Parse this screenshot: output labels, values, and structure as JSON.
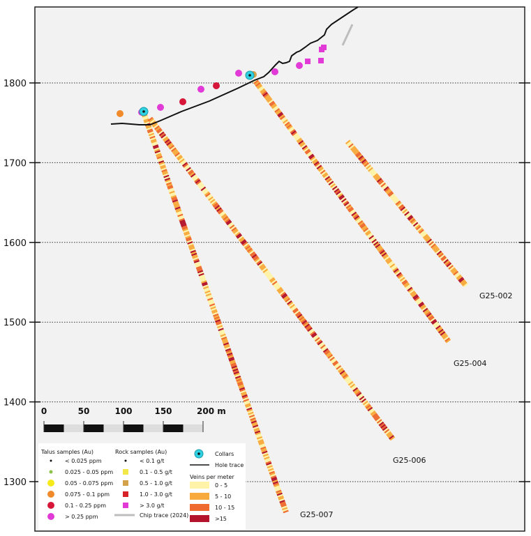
{
  "y_axis": {
    "ticks": [
      1800,
      1700,
      1600,
      1500,
      1400,
      1300
    ]
  },
  "scale_bar": {
    "labels": [
      "0",
      "50",
      "100",
      "150",
      "200 m"
    ]
  },
  "drill_holes": [
    {
      "name": "G25-007",
      "seed": 7
    },
    {
      "name": "G25-006",
      "seed": 6
    },
    {
      "name": "G25-004",
      "seed": 4
    },
    {
      "name": "G25-002",
      "seed": 2
    }
  ],
  "colors": {
    "collar": "#2fd0e0",
    "talus_orange": "#f08a2a",
    "talus_red": "#d6173a",
    "talus_magenta": "#e13ad6",
    "rock_tan": "#d4a24a",
    "rock_magenta": "#e13ad6",
    "chip": "#bdbdbd",
    "veins": [
      "#fff3a8",
      "#f8aa3c",
      "#ef6a2e",
      "#b3132b"
    ]
  },
  "legend": {
    "talus_title": "Talus samples (Au)",
    "talus": [
      "< 0.025 ppm",
      "0.025 - 0.05 ppm",
      "0.05 - 0.075 ppm",
      "0.075 - 0.1 ppm",
      "0.1 - 0.25 ppm",
      "> 0.25 ppm"
    ],
    "rock_title": "Rock samples (Au)",
    "rock": [
      "< 0.1 g/t",
      "0.1 - 0.5 g/t",
      "0.5 - 1.0 g/t",
      "1.0 - 3.0 g/t",
      "> 3.0 g/t"
    ],
    "chip": "Chip trace (2024)",
    "collars": "Collars",
    "hole_trace": "Hole trace",
    "veins_title": "Veins per meter",
    "veins": [
      "0 - 5",
      "5 - 10",
      "10 - 15",
      ">15"
    ]
  }
}
